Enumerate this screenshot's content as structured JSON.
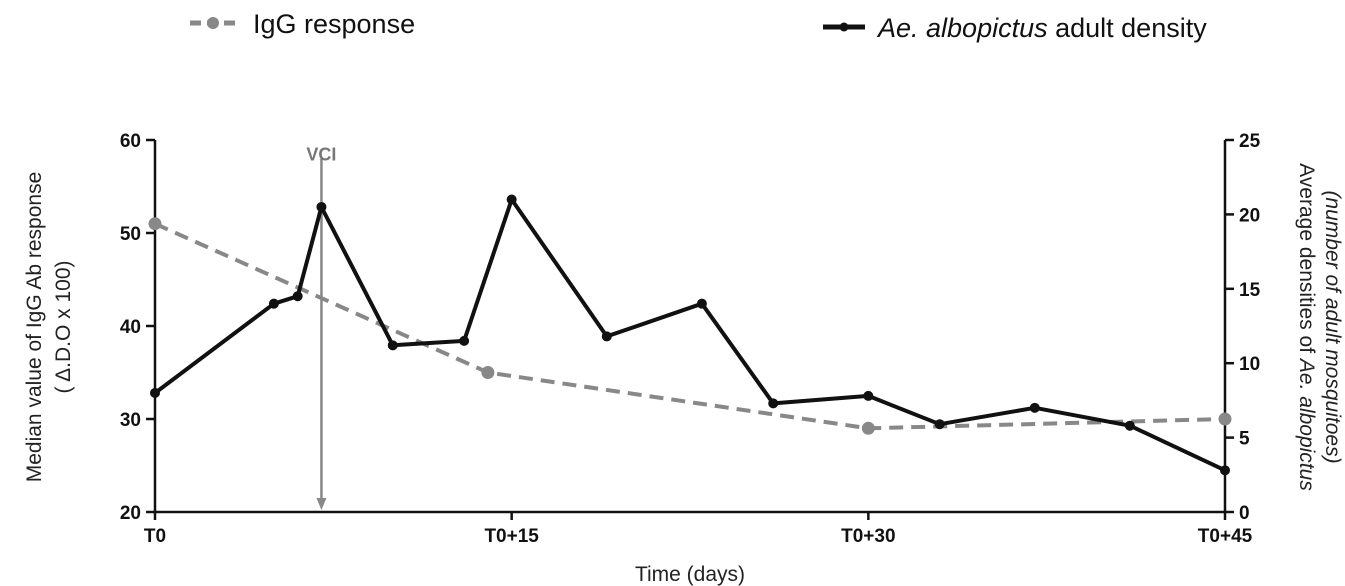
{
  "chart_data": {
    "type": "line",
    "x_tick_labels": [
      "T0",
      "T0+15",
      "T0+30",
      "T0+45"
    ],
    "x_tick_values": [
      0,
      15,
      30,
      45
    ],
    "xlim": [
      0,
      45
    ],
    "xlabel": "Time (days)",
    "ylabel_left": {
      "line1": "Median value of IgG Ab response",
      "line2": "( Δ.D.O x 100)"
    },
    "ylim_left": [
      20,
      60
    ],
    "yticks_left": [
      "20",
      "30",
      "40",
      "50",
      "60"
    ],
    "ylabel_right": {
      "line1_pre": "Average densities of ",
      "line1_italic": "Ae. albopictus",
      "line2": "(number of adult mosquitoes)"
    },
    "ylim_right": [
      0,
      25
    ],
    "yticks_right": [
      "0",
      "5",
      "10",
      "15",
      "20",
      "25"
    ],
    "annotation": {
      "label": "VCI",
      "x": 7,
      "y_top": 58,
      "y_bottom": 20
    },
    "legend_position": "top",
    "series": [
      {
        "name": "IgG response",
        "axis": "left",
        "color": "#888888",
        "style": "dashed",
        "x": [
          0,
          14,
          30,
          45
        ],
        "y": [
          51,
          35,
          29,
          30
        ]
      },
      {
        "name_italic": "Ae. albopictus",
        "name_rest": " adult density",
        "axis": "right",
        "color": "#111111",
        "style": "solid",
        "x": [
          0,
          5,
          6,
          7,
          10,
          13,
          15,
          19,
          23,
          26,
          30,
          33,
          37,
          41,
          45
        ],
        "y": [
          8,
          14,
          14.5,
          20.5,
          11.2,
          11.5,
          21,
          11.8,
          14,
          7.3,
          7.8,
          5.9,
          7,
          5.8,
          2.8
        ]
      }
    ]
  }
}
